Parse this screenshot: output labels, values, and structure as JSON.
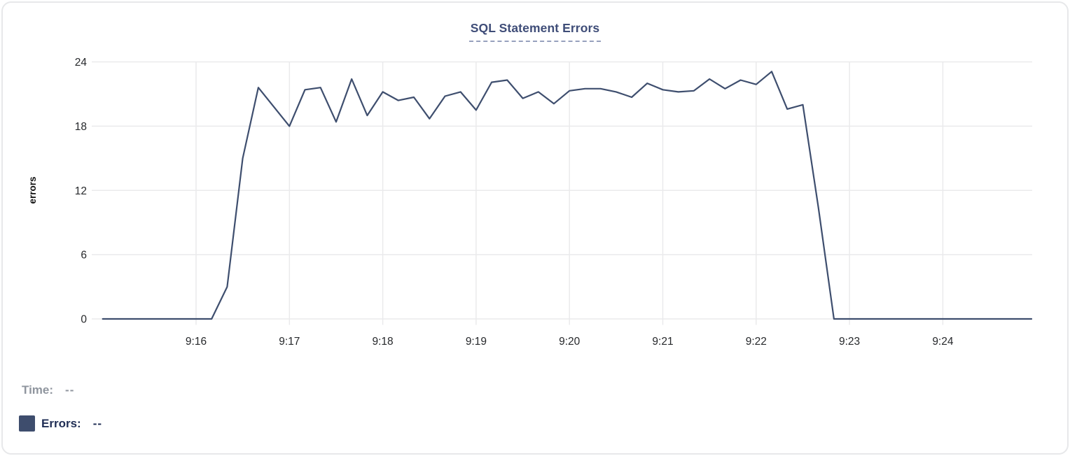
{
  "chart": {
    "title": "SQL Statement Errors"
  },
  "legend": {
    "time_label": "Time:",
    "time_value": "--",
    "errors_label": "Errors:",
    "errors_value": "--"
  },
  "colors": {
    "line": "#3e4e6e",
    "swatch": "#3e4d6d",
    "title_text": "#3f4d78",
    "title_underline": "#97a1bd",
    "grid": "#eaeaec",
    "tick_text": "#26282b",
    "axis_label_text": "#111111",
    "time_text": "#8f959e",
    "errors_text": "#1f2d54"
  },
  "chart_data": {
    "type": "line",
    "title": "SQL Statement Errors",
    "xlabel": "",
    "ylabel": "errors",
    "ylim": [
      0,
      24
    ],
    "yticks": [
      0,
      6,
      12,
      18,
      24
    ],
    "xticks": [
      "9:16",
      "9:17",
      "9:18",
      "9:19",
      "9:20",
      "9:21",
      "9:22",
      "9:23",
      "9:24"
    ],
    "grid": true,
    "legend_position": "bottom-left",
    "series": [
      {
        "name": "Errors",
        "color": "#3e4e6e",
        "times": [
          "9:15:00",
          "9:15:10",
          "9:15:20",
          "9:15:30",
          "9:15:40",
          "9:15:50",
          "9:16:00",
          "9:16:10",
          "9:16:20",
          "9:16:30",
          "9:16:40",
          "9:16:50",
          "9:17:00",
          "9:17:10",
          "9:17:20",
          "9:17:30",
          "9:17:40",
          "9:17:50",
          "9:18:00",
          "9:18:10",
          "9:18:20",
          "9:18:30",
          "9:18:40",
          "9:18:50",
          "9:19:00",
          "9:19:10",
          "9:19:20",
          "9:19:30",
          "9:19:40",
          "9:19:50",
          "9:20:00",
          "9:20:10",
          "9:20:20",
          "9:20:30",
          "9:20:40",
          "9:20:50",
          "9:21:00",
          "9:21:10",
          "9:21:20",
          "9:21:30",
          "9:21:40",
          "9:21:50",
          "9:22:00",
          "9:22:10",
          "9:22:20",
          "9:22:30",
          "9:22:40",
          "9:22:50",
          "9:23:00",
          "9:23:10",
          "9:23:20",
          "9:23:30",
          "9:23:40",
          "9:23:50",
          "9:24:00",
          "9:24:10",
          "9:24:20",
          "9:24:30",
          "9:24:40",
          "9:24:50",
          "9:24:57"
        ],
        "values": [
          0,
          0,
          0,
          0,
          0,
          0,
          0,
          0,
          3,
          15,
          21.6,
          19.8,
          18,
          21.4,
          21.6,
          18.4,
          22.4,
          19,
          21.2,
          20.4,
          20.7,
          18.7,
          20.8,
          21.2,
          19.5,
          22.1,
          22.3,
          20.6,
          21.2,
          20.1,
          21.3,
          21.5,
          21.5,
          21.2,
          20.7,
          22,
          21.4,
          21.2,
          21.3,
          22.4,
          21.5,
          22.3,
          21.9,
          23.1,
          19.6,
          20,
          10.4,
          0,
          0,
          0,
          0,
          0,
          0,
          0,
          0,
          0,
          0,
          0,
          0,
          0,
          0
        ]
      }
    ]
  }
}
